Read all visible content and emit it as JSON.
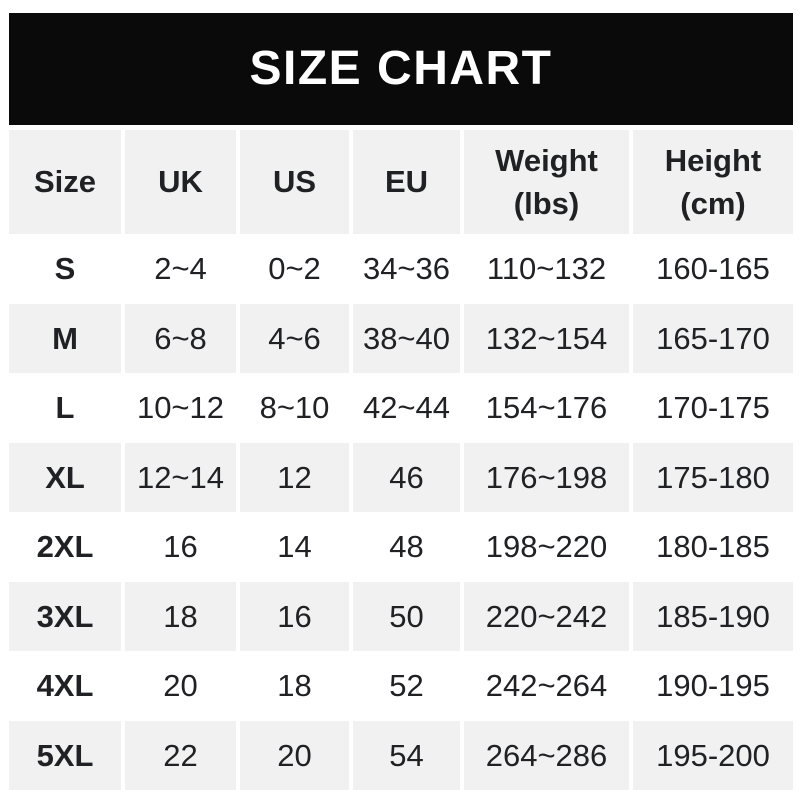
{
  "chart_data": {
    "type": "table",
    "title": "SIZE CHART",
    "columns": [
      "Size",
      "UK",
      "US",
      "EU",
      "Weight\n(lbs)",
      "Height\n(cm)"
    ],
    "rows": [
      [
        "S",
        "2~4",
        "0~2",
        "34~36",
        "110~132",
        "160-165"
      ],
      [
        "M",
        "6~8",
        "4~6",
        "38~40",
        "132~154",
        "165-170"
      ],
      [
        "L",
        "10~12",
        "8~10",
        "42~44",
        "154~176",
        "170-175"
      ],
      [
        "XL",
        "12~14",
        "12",
        "46",
        "176~198",
        "175-180"
      ],
      [
        "2XL",
        "16",
        "14",
        "48",
        "198~220",
        "180-185"
      ],
      [
        "3XL",
        "18",
        "16",
        "50",
        "220~242",
        "185-190"
      ],
      [
        "4XL",
        "20",
        "18",
        "52",
        "242~264",
        "190-195"
      ],
      [
        "5XL",
        "22",
        "20",
        "54",
        "264~286",
        "195-200"
      ]
    ],
    "layout": {
      "header_stripe": true,
      "alternating_rows": true,
      "grid": "white-gutters"
    }
  },
  "colors": {
    "banner_bg": "#0a0a0a",
    "banner_text": "#ffffff",
    "stripe": "#f1f1f1",
    "text": "#202124",
    "page_bg": "#ffffff"
  }
}
